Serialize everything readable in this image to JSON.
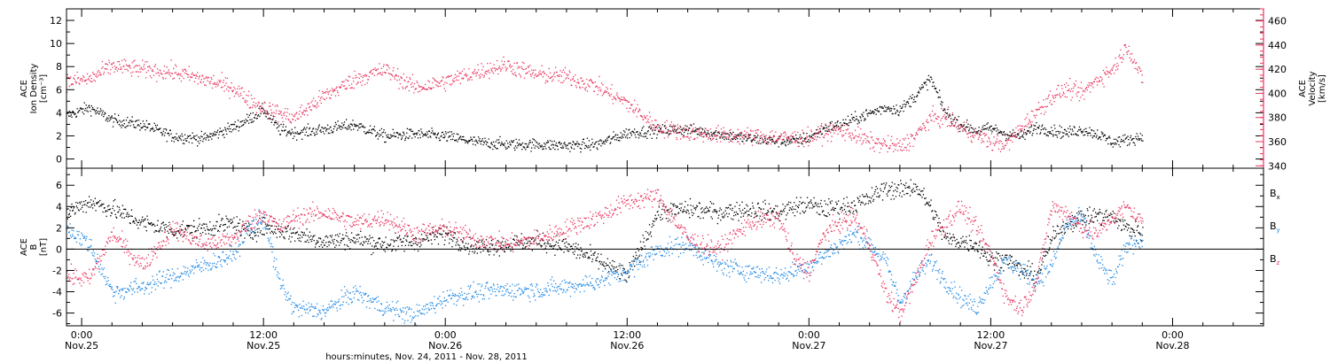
{
  "chart_data": {
    "type": "scatter",
    "x_label": "hours:minutes, Nov. 24, 2011 - Nov. 28, 2011",
    "x_ticks": [
      {
        "time": "0:00",
        "date": "Nov.25",
        "hours": 0
      },
      {
        "time": "12:00",
        "date": "Nov.25",
        "hours": 12
      },
      {
        "time": "0:00",
        "date": "Nov.26",
        "hours": 24
      },
      {
        "time": "12:00",
        "date": "Nov.26",
        "hours": 36
      },
      {
        "time": "0:00",
        "date": "Nov.27",
        "hours": 48
      },
      {
        "time": "12:00",
        "date": "Nov.27",
        "hours": 60
      },
      {
        "time": "0:00",
        "date": "Nov.28",
        "hours": 72
      }
    ],
    "x_range_hours": [
      -1,
      78
    ],
    "panels": [
      {
        "id": "top",
        "left_axis": {
          "label_lines": [
            "ACE",
            "Ion Density"
          ],
          "unit": "[cm⁻³]",
          "range": [
            -0.8,
            13
          ],
          "ticks": [
            0,
            2,
            4,
            6,
            8,
            10,
            12
          ],
          "color": "#000000"
        },
        "right_axis": {
          "label_lines": [
            "ACE",
            "Velocity"
          ],
          "unit": "[km/s]",
          "range": [
            338,
            470
          ],
          "ticks": [
            340,
            360,
            380,
            400,
            420,
            440,
            460
          ],
          "color": "#e8365f"
        },
        "series": [
          {
            "color": "#000000",
            "axis": "left",
            "x": [
              -1,
              0.5,
              2,
              4,
              6,
              8,
              10,
              11,
              12,
              13,
              14,
              16,
              18,
              20,
              22,
              24,
              26,
              28,
              30,
              32,
              34,
              36,
              38,
              40,
              42,
              44,
              46,
              47,
              48,
              49,
              50,
              51,
              52,
              53,
              54,
              55,
              56,
              57,
              58,
              59,
              60,
              61,
              62,
              63,
              64,
              65,
              66,
              67,
              68,
              69,
              70
            ],
            "y": [
              3.8,
              4.5,
              3.4,
              3.0,
              2.0,
              1.8,
              2.8,
              3.5,
              4.3,
              2.6,
              2.3,
              2.6,
              3.0,
              2.0,
              2.2,
              2.0,
              1.5,
              1.3,
              1.3,
              1.2,
              1.3,
              2.3,
              2.5,
              2.6,
              2.2,
              1.8,
              1.6,
              1.6,
              1.9,
              2.7,
              3.0,
              3.5,
              4.0,
              4.5,
              4.3,
              5.5,
              7.0,
              4.0,
              3.0,
              2.5,
              2.7,
              2.2,
              2.0,
              2.8,
              2.5,
              2.3,
              2.6,
              2.2,
              1.5,
              1.7,
              2.0
            ]
          },
          {
            "color": "#e8365f",
            "axis": "right",
            "x": [
              -1,
              0.5,
              2,
              4,
              6,
              8,
              10,
              11,
              12,
              13,
              14,
              16,
              18,
              20,
              22,
              24,
              26,
              28,
              30,
              32,
              34,
              36,
              38,
              40,
              42,
              44,
              46,
              47,
              48,
              49,
              50,
              51,
              52,
              53,
              54,
              55,
              56,
              57,
              58,
              59,
              60,
              61,
              62,
              63,
              64,
              65,
              66,
              67,
              68,
              69,
              70
            ],
            "y": [
              410,
              412,
              423,
              420,
              418,
              412,
              405,
              395,
              388,
              384,
              380,
              398,
              412,
              420,
              405,
              410,
              418,
              424,
              416,
              414,
              406,
              392,
              372,
              368,
              366,
              365,
              364,
              363,
              364,
              368,
              370,
              366,
              360,
              358,
              356,
              365,
              380,
              380,
              372,
              366,
              360,
              358,
              372,
              385,
              398,
              404,
              400,
              412,
              420,
              440,
              410
            ]
          }
        ]
      },
      {
        "id": "bottom",
        "left_axis": {
          "label_lines": [
            "ACE",
            "B"
          ],
          "unit": "[nT]",
          "range": [
            -7.2,
            7.6
          ],
          "ticks": [
            -6,
            -4,
            -2,
            0,
            2,
            4,
            6
          ],
          "color": "#000000"
        },
        "legend": [
          {
            "label": "B",
            "sub": "x",
            "color": "#000000"
          },
          {
            "label": "B",
            "sub": "y",
            "color": "#1e88e5"
          },
          {
            "label": "B",
            "sub": "z",
            "color": "#e8365f"
          }
        ],
        "series": [
          {
            "name": "Bx",
            "color": "#000000",
            "x": [
              -1,
              0.5,
              2,
              4,
              6,
              8,
              10,
              11,
              12,
              13,
              14,
              16,
              18,
              20,
              22,
              24,
              26,
              28,
              30,
              32,
              34,
              36,
              38,
              40,
              42,
              44,
              46,
              47,
              48,
              49,
              50,
              51,
              52,
              53,
              54,
              55,
              56,
              57,
              58,
              59,
              60,
              61,
              62,
              63,
              64,
              65,
              66,
              67,
              68,
              69,
              70
            ],
            "y": [
              3.5,
              4.5,
              3.8,
              2.5,
              1.8,
              2.0,
              2.5,
              1.5,
              2.2,
              1.8,
              1.5,
              0.8,
              1.0,
              0.5,
              0.8,
              1.5,
              0.2,
              0.5,
              0.8,
              0.3,
              -1.0,
              -2.5,
              3.5,
              3.8,
              3.5,
              3.8,
              3.5,
              4.0,
              4.2,
              3.8,
              4.0,
              4.2,
              4.8,
              5.8,
              5.5,
              6.0,
              4.0,
              1.0,
              0.8,
              0.5,
              -1.0,
              -0.8,
              -2.0,
              -2.5,
              1.0,
              2.5,
              3.0,
              3.2,
              3.0,
              2.0,
              1.5
            ]
          },
          {
            "name": "By",
            "color": "#1e88e5",
            "x": [
              -1,
              0.5,
              2,
              4,
              6,
              8,
              10,
              11,
              12,
              13,
              14,
              16,
              18,
              20,
              22,
              24,
              26,
              28,
              30,
              32,
              34,
              36,
              38,
              40,
              42,
              44,
              46,
              47,
              48,
              49,
              50,
              51,
              52,
              53,
              54,
              55,
              56,
              57,
              58,
              59,
              60,
              61,
              62,
              63,
              64,
              65,
              66,
              67,
              68,
              69,
              70
            ],
            "y": [
              2.0,
              0.5,
              -4.0,
              -3.5,
              -2.5,
              -1.5,
              -0.5,
              2.0,
              3.0,
              -3.0,
              -5.5,
              -5.8,
              -4.0,
              -5.5,
              -6.2,
              -4.5,
              -4.0,
              -3.8,
              -3.8,
              -3.5,
              -3.0,
              -2.0,
              0.0,
              0.5,
              -1.5,
              -2.0,
              -2.5,
              -2.0,
              -1.5,
              -0.5,
              0.5,
              1.5,
              0.5,
              -1.0,
              -5.0,
              -2.5,
              -1.0,
              -3.0,
              -4.5,
              -5.5,
              -3.0,
              -1.0,
              -2.0,
              -3.0,
              -1.5,
              2.5,
              3.0,
              -1.0,
              -3.0,
              0.5,
              1.0
            ]
          },
          {
            "name": "Bz",
            "color": "#e8365f",
            "x": [
              -1,
              0.5,
              2,
              4,
              6,
              8,
              10,
              11,
              12,
              13,
              14,
              16,
              18,
              20,
              22,
              24,
              26,
              28,
              30,
              32,
              34,
              36,
              38,
              40,
              42,
              44,
              46,
              47,
              48,
              49,
              50,
              51,
              52,
              53,
              54,
              55,
              56,
              57,
              58,
              59,
              60,
              61,
              62,
              63,
              64,
              65,
              66,
              67,
              68,
              69,
              70
            ],
            "y": [
              -2.5,
              -2.8,
              1.5,
              -1.5,
              2.0,
              0.5,
              1.0,
              2.5,
              3.5,
              2.0,
              3.0,
              3.5,
              2.5,
              3.0,
              1.5,
              2.0,
              1.0,
              0.5,
              1.0,
              2.0,
              3.0,
              4.5,
              5.0,
              1.0,
              0.0,
              2.5,
              3.0,
              -1.0,
              -2.0,
              1.5,
              2.5,
              3.0,
              0.5,
              -4.0,
              -6.0,
              -3.0,
              1.0,
              2.5,
              4.0,
              2.0,
              -0.5,
              -4.5,
              -5.5,
              -3.0,
              4.0,
              3.5,
              2.0,
              1.5,
              3.0,
              4.0,
              2.5
            ]
          }
        ]
      }
    ]
  }
}
